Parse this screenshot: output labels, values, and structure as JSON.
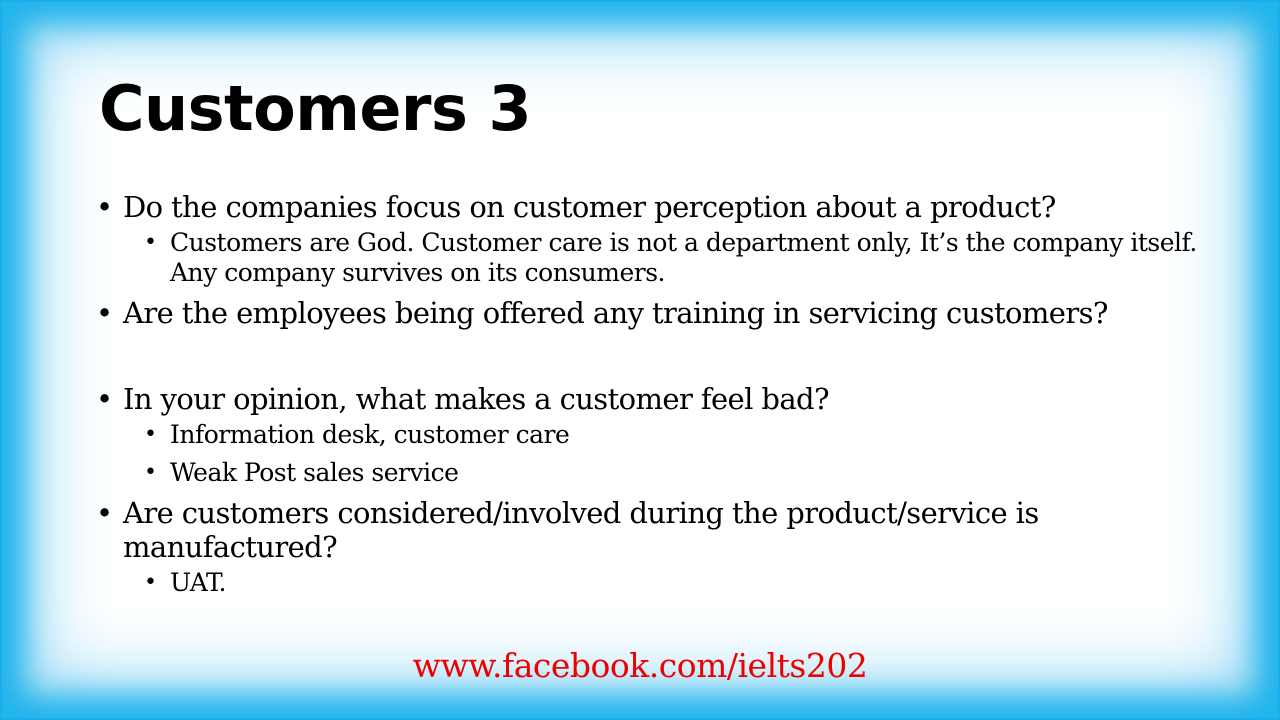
{
  "slide": {
    "title": "Customers 3",
    "items": [
      {
        "text": "Do the companies focus on customer perception about a product?",
        "subitems": [
          "Customers are God. Customer care is not a department only, It’s the company itself. Any company survives on its consumers."
        ]
      },
      {
        "text": "Are the employees being offered any training in servicing customers?",
        "subitems": []
      },
      {
        "text": "In your opinion, what makes a customer feel bad?",
        "subitems": [
          "Information desk, customer care",
          "Weak Post sales service"
        ]
      },
      {
        "text": "Are customers considered/involved during the product/service is manufactured?",
        "subitems": [
          "UAT."
        ]
      }
    ],
    "bullet_symbol": "•",
    "footer_link": "www.facebook.com/ielts202"
  },
  "colors": {
    "border": "#1fb3ec",
    "link": "#ee0000",
    "text": "#000000"
  }
}
